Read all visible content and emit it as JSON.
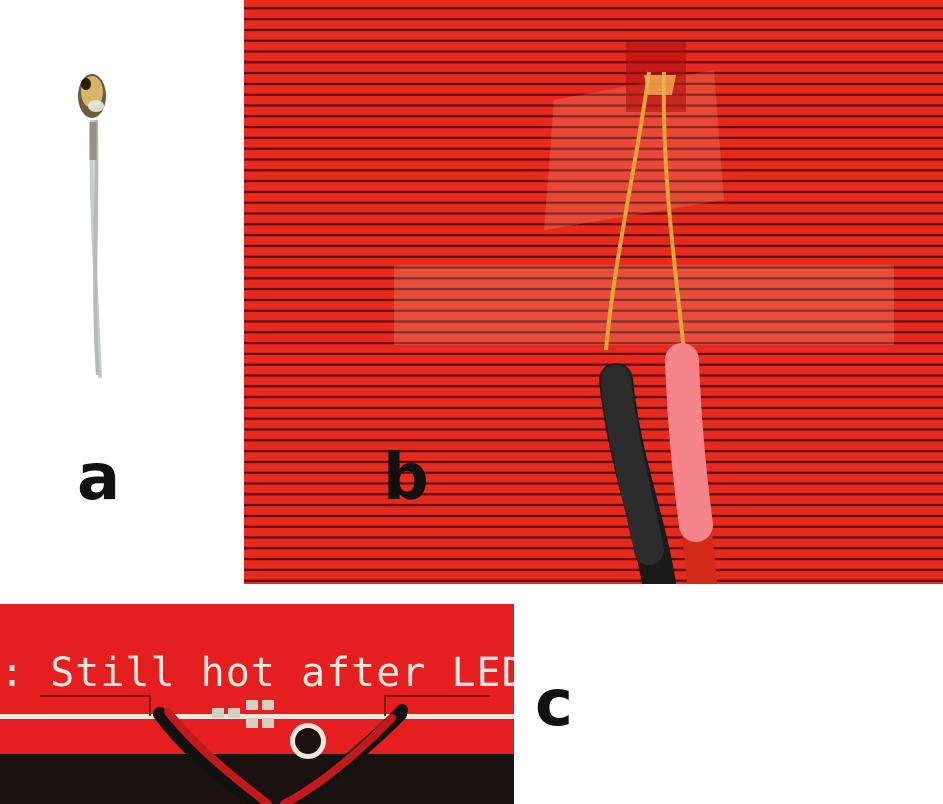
{
  "panels": {
    "a": {
      "label": "a"
    },
    "b": {
      "label": "b"
    },
    "c": {
      "label": "c",
      "board_text": ": Still hot after LED"
    }
  },
  "colors": {
    "board_red": "#e51f1f",
    "trace_dark": "#5a0b0b",
    "kapton_amber": "#e8a23a",
    "wire_black": "#1a1a1a",
    "wire_red": "#d42a1a",
    "silkscreen": "#f1e7df"
  }
}
